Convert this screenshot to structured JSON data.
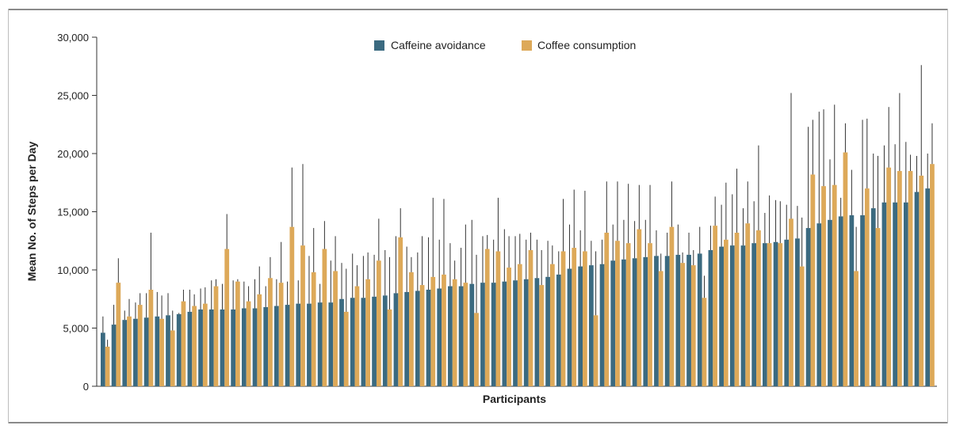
{
  "chart_data": {
    "type": "bar",
    "xlabel": "Participants",
    "ylabel": "Mean No. of Steps per Day",
    "ylim": [
      0,
      30000
    ],
    "yticks": [
      0,
      5000,
      10000,
      15000,
      20000,
      25000,
      30000
    ],
    "ytick_labels": [
      "0",
      "5,000",
      "10,000",
      "15,000",
      "20,000",
      "25,000",
      "30,000"
    ],
    "legend_position": "top-center",
    "grid": false,
    "error_bars": "upper",
    "series": [
      {
        "name": "Caffeine avoidance",
        "color": "#3b6a80",
        "values": [
          4600,
          5300,
          5700,
          5800,
          5900,
          6000,
          6100,
          6200,
          6400,
          6600,
          6600,
          6600,
          6600,
          6700,
          6700,
          6800,
          6900,
          7000,
          7100,
          7100,
          7200,
          7200,
          7500,
          7600,
          7600,
          7700,
          7800,
          8000,
          8100,
          8200,
          8300,
          8400,
          8600,
          8600,
          8800,
          8900,
          8900,
          9000,
          9100,
          9200,
          9300,
          9400,
          9600,
          10100,
          10300,
          10400,
          10500,
          10800,
          10900,
          11000,
          11100,
          11200,
          11200,
          11300,
          11300,
          11400,
          11700,
          12000,
          12100,
          12100,
          12300,
          12300,
          12400,
          12600,
          12700,
          13600,
          14000,
          14300,
          14600,
          14700,
          14700,
          15300,
          15800,
          15800,
          15800,
          16700,
          17000
        ],
        "error_upper": [
          6000,
          7000,
          6500,
          7200,
          8000,
          8100,
          8000,
          6300,
          8300,
          8400,
          9100,
          8800,
          9100,
          9000,
          9200,
          8600,
          9200,
          9000,
          9100,
          11200,
          8800,
          10800,
          10600,
          11400,
          11200,
          11300,
          11700,
          12900,
          12000,
          11500,
          12800,
          12600,
          12300,
          11900,
          14300,
          12900,
          12600,
          13500,
          12900,
          12600,
          12600,
          12500,
          11600,
          13900,
          13400,
          12500,
          12600,
          13900,
          14300,
          14200,
          14300,
          13400,
          13200,
          13900,
          13200,
          13700,
          13800,
          15600,
          16500,
          15300,
          15900,
          14900,
          16000,
          15600,
          15500,
          22300,
          23600,
          19500,
          16200,
          18600,
          22900,
          20000,
          20700,
          20800,
          21000,
          19800,
          20000
        ]
      },
      {
        "name": "Coffee consumption",
        "color": "#dda959",
        "values": [
          3400,
          8900,
          6000,
          7000,
          8300,
          5800,
          4800,
          7300,
          6900,
          7100,
          8600,
          11800,
          9000,
          7300,
          7900,
          9300,
          8900,
          13700,
          12100,
          9800,
          11800,
          9900,
          6400,
          8600,
          9200,
          10800,
          6600,
          12800,
          9800,
          8700,
          9400,
          9600,
          9200,
          8900,
          6300,
          11800,
          11600,
          10200,
          10500,
          11700,
          8700,
          10500,
          11600,
          11900,
          11600,
          6100,
          13200,
          12500,
          12300,
          13500,
          12300,
          9900,
          13700,
          10600,
          10400,
          7600,
          13800,
          12600,
          13200,
          14000,
          13400,
          12300,
          12300,
          14400,
          10300,
          18200,
          17200,
          17300,
          20100,
          9900,
          17000,
          13600,
          18800,
          18500,
          18500,
          18100,
          19100
        ],
        "error_upper": [
          4000,
          11000,
          7500,
          8000,
          13200,
          7800,
          6500,
          8300,
          7900,
          8500,
          9200,
          14800,
          9200,
          8600,
          10300,
          11100,
          12400,
          18800,
          19100,
          13600,
          14200,
          12900,
          10100,
          10400,
          11500,
          14400,
          11100,
          15300,
          11100,
          12900,
          16200,
          16100,
          10800,
          13900,
          11300,
          13000,
          16200,
          12900,
          13100,
          13200,
          11700,
          12100,
          16100,
          16900,
          16800,
          11600,
          17600,
          17600,
          17400,
          17300,
          17300,
          11400,
          17600,
          11500,
          11700,
          9500,
          16300,
          17500,
          18700,
          17600,
          20700,
          16400,
          15900,
          25200,
          14500,
          22900,
          23800,
          24200,
          22600,
          13700,
          23000,
          19800,
          24000,
          25200,
          19900,
          27600,
          22600
        ]
      }
    ]
  }
}
